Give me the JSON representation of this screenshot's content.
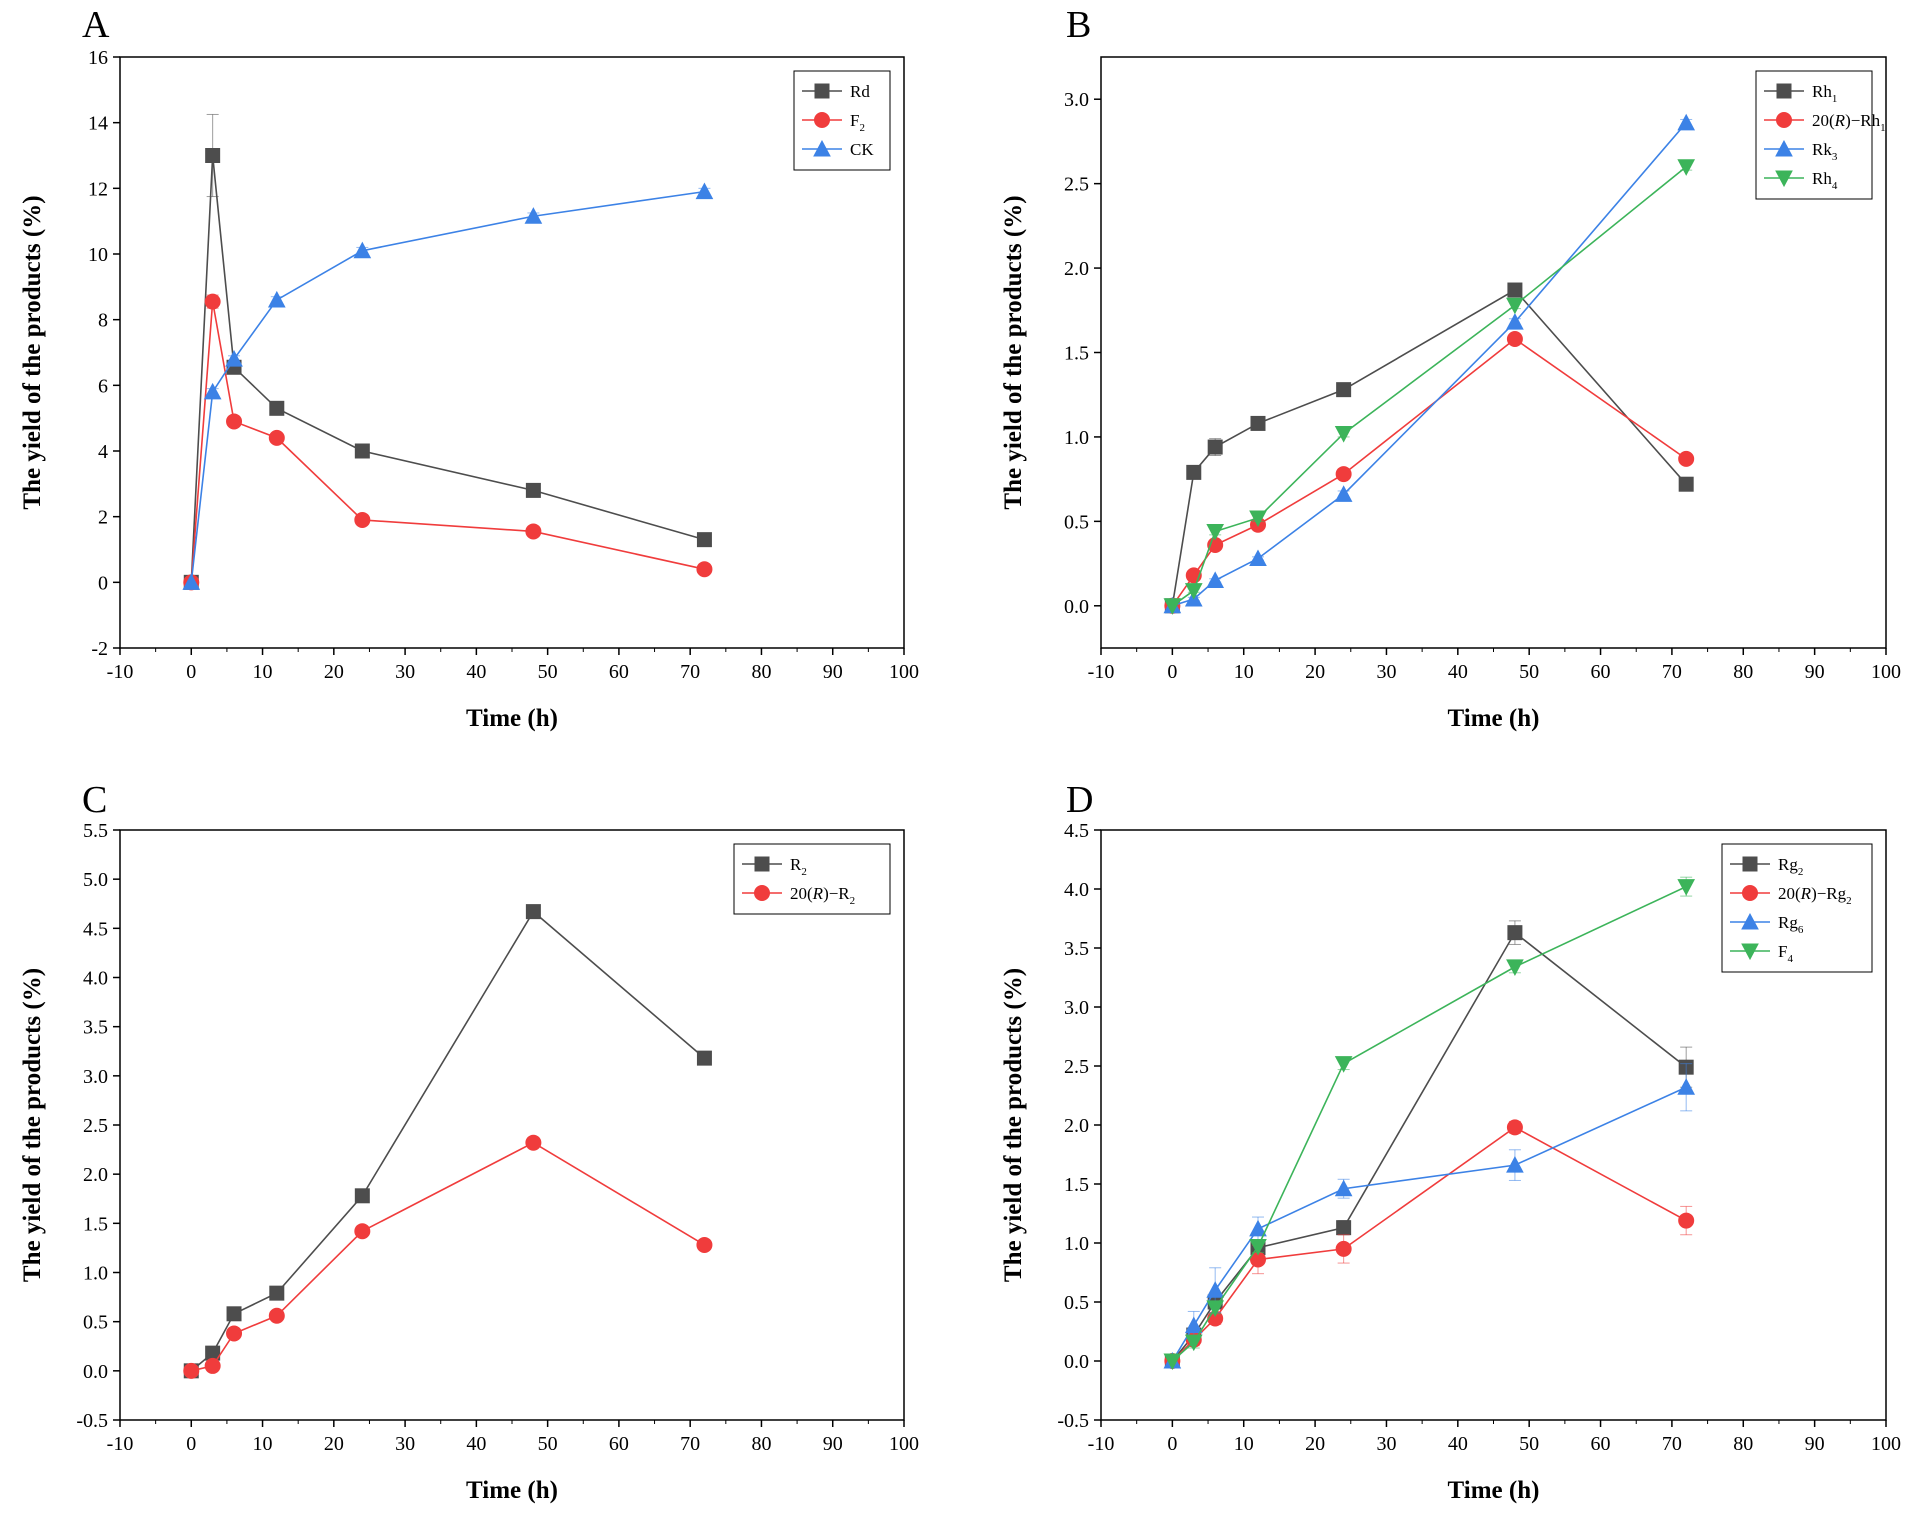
{
  "figure": {
    "panels": [
      "A",
      "B",
      "C",
      "D"
    ]
  },
  "chart_data": [
    {
      "panel": "A",
      "type": "line",
      "xlabel": "Time (h)",
      "ylabel": "The yield of the products (%)",
      "xlim": [
        -10,
        100
      ],
      "xticks": [
        -10,
        0,
        10,
        20,
        30,
        40,
        50,
        60,
        70,
        80,
        90,
        100
      ],
      "ylim": [
        -2,
        16
      ],
      "yticks": [
        -2,
        0,
        2,
        4,
        6,
        8,
        10,
        12,
        14,
        16
      ],
      "ytick_labels": [
        "-2",
        "0",
        "2",
        "4",
        "6",
        "8",
        "10",
        "12",
        "14",
        "16"
      ],
      "legend_position": "top-right",
      "x": [
        0,
        3,
        6,
        12,
        24,
        48,
        72
      ],
      "series": [
        {
          "name": "Rd",
          "sub": "",
          "color": "#4d4d4d",
          "marker": "square",
          "values": [
            0,
            13.0,
            6.55,
            5.3,
            4.0,
            2.8,
            1.3
          ],
          "errors": [
            0,
            1.25,
            0.12,
            0.15,
            0.1,
            0.05,
            0.1
          ]
        },
        {
          "name": "F",
          "sub": "2",
          "color": "#f03c3c",
          "marker": "circle",
          "values": [
            0,
            8.55,
            4.9,
            4.4,
            1.9,
            1.55,
            0.4
          ],
          "errors": [
            0,
            0.2,
            0.05,
            0.05,
            0.1,
            0.05,
            0.05
          ]
        },
        {
          "name": "CK",
          "sub": "",
          "color": "#3c82e6",
          "marker": "triangle-up",
          "values": [
            0,
            5.8,
            6.8,
            8.6,
            10.1,
            11.15,
            11.9
          ],
          "errors": [
            0,
            0.1,
            0.1,
            0.1,
            0.1,
            0.1,
            0.1
          ]
        }
      ]
    },
    {
      "panel": "B",
      "type": "line",
      "xlabel": "Time (h)",
      "ylabel": "The yield of the products (%)",
      "xlim": [
        -10,
        100
      ],
      "xticks": [
        -10,
        0,
        10,
        20,
        30,
        40,
        50,
        60,
        70,
        80,
        90,
        100
      ],
      "ylim": [
        -0.25,
        3.25
      ],
      "yticks": [
        0,
        0.5,
        1.0,
        1.5,
        2.0,
        2.5,
        3.0
      ],
      "ytick_labels": [
        "0.0",
        "0.5",
        "1.0",
        "1.5",
        "2.0",
        "2.5",
        "3.0"
      ],
      "legend_position": "top-right",
      "x": [
        0,
        3,
        6,
        12,
        24,
        48,
        72
      ],
      "series": [
        {
          "name": "Rh",
          "sub": "1",
          "color": "#4d4d4d",
          "marker": "square",
          "values": [
            0,
            0.79,
            0.94,
            1.08,
            1.28,
            1.87,
            0.72
          ],
          "errors": [
            0,
            0.02,
            0.05,
            0.02,
            0.02,
            0.02,
            0.02
          ]
        },
        {
          "name": "20(R)−Rh",
          "sub": "1",
          "color": "#f03c3c",
          "marker": "circle",
          "values": [
            0,
            0.18,
            0.36,
            0.48,
            0.78,
            1.58,
            0.87
          ],
          "errors": [
            0,
            0.02,
            0.02,
            0.02,
            0.02,
            0.02,
            0.02
          ]
        },
        {
          "name": "Rk",
          "sub": "3",
          "color": "#3c82e6",
          "marker": "triangle-up",
          "values": [
            0,
            0.04,
            0.15,
            0.28,
            0.66,
            1.68,
            2.86
          ],
          "errors": [
            0,
            0.01,
            0.01,
            0.01,
            0.02,
            0.02,
            0.02
          ]
        },
        {
          "name": "Rh",
          "sub": "4",
          "color": "#3cb45a",
          "marker": "triangle-down",
          "values": [
            0,
            0.09,
            0.44,
            0.52,
            1.02,
            1.78,
            2.6
          ],
          "errors": [
            0,
            0.01,
            0.02,
            0.02,
            0.02,
            0.02,
            0.02
          ]
        }
      ]
    },
    {
      "panel": "C",
      "type": "line",
      "xlabel": "Time (h)",
      "ylabel": "The yield of the products (%)",
      "xlim": [
        -10,
        100
      ],
      "xticks": [
        -10,
        0,
        10,
        20,
        30,
        40,
        50,
        60,
        70,
        80,
        90,
        100
      ],
      "ylim": [
        -0.5,
        5.5
      ],
      "yticks": [
        -0.5,
        0,
        0.5,
        1.0,
        1.5,
        2.0,
        2.5,
        3.0,
        3.5,
        4.0,
        4.5,
        5.0,
        5.5
      ],
      "ytick_labels": [
        "-0.5",
        "0.0",
        "0.5",
        "1.0",
        "1.5",
        "2.0",
        "2.5",
        "3.0",
        "3.5",
        "4.0",
        "4.5",
        "5.0",
        "5.5"
      ],
      "legend_position": "top-right",
      "x": [
        0,
        3,
        6,
        12,
        24,
        48,
        72
      ],
      "series": [
        {
          "name": "R",
          "sub": "2",
          "color": "#4d4d4d",
          "marker": "square",
          "values": [
            0,
            0.18,
            0.58,
            0.79,
            1.78,
            4.67,
            3.18
          ],
          "errors": [
            0,
            0.02,
            0.02,
            0.02,
            0.02,
            0.02,
            0.02
          ]
        },
        {
          "name": "20(R)−R",
          "sub": "2",
          "color": "#f03c3c",
          "marker": "circle",
          "values": [
            0,
            0.05,
            0.38,
            0.56,
            1.42,
            2.32,
            1.28
          ],
          "errors": [
            0,
            0.02,
            0.02,
            0.02,
            0.02,
            0.02,
            0.02
          ]
        }
      ]
    },
    {
      "panel": "D",
      "type": "line",
      "xlabel": "Time (h)",
      "ylabel": "The yield of the products (%)",
      "xlim": [
        -10,
        100
      ],
      "xticks": [
        -10,
        0,
        10,
        20,
        30,
        40,
        50,
        60,
        70,
        80,
        90,
        100
      ],
      "ylim": [
        -0.5,
        4.5
      ],
      "yticks": [
        -0.5,
        0,
        0.5,
        1.0,
        1.5,
        2.0,
        2.5,
        3.0,
        3.5,
        4.0,
        4.5
      ],
      "ytick_labels": [
        "-0.5",
        "0.0",
        "0.5",
        "1.0",
        "1.5",
        "2.0",
        "2.5",
        "3.0",
        "3.5",
        "4.0",
        "4.5"
      ],
      "legend_position": "top-right",
      "x": [
        0,
        3,
        6,
        12,
        24,
        48,
        72
      ],
      "series": [
        {
          "name": "Rg",
          "sub": "2",
          "color": "#4d4d4d",
          "marker": "square",
          "values": [
            0,
            0.22,
            0.5,
            0.96,
            1.13,
            3.63,
            2.49
          ],
          "errors": [
            0,
            0.05,
            0.05,
            0.05,
            0.06,
            0.1,
            0.17
          ]
        },
        {
          "name": "20(R)−Rg",
          "sub": "2",
          "color": "#f03c3c",
          "marker": "circle",
          "values": [
            0,
            0.18,
            0.36,
            0.86,
            0.95,
            1.98,
            1.19
          ],
          "errors": [
            0,
            0.05,
            0.05,
            0.12,
            0.12,
            0.05,
            0.12
          ]
        },
        {
          "name": "Rg",
          "sub": "6",
          "color": "#3c82e6",
          "marker": "triangle-up",
          "values": [
            0,
            0.3,
            0.6,
            1.12,
            1.46,
            1.66,
            2.32
          ],
          "errors": [
            0,
            0.12,
            0.19,
            0.1,
            0.08,
            0.13,
            0.2
          ]
        },
        {
          "name": "F",
          "sub": "4",
          "color": "#3cb45a",
          "marker": "triangle-down",
          "values": [
            0,
            0.16,
            0.45,
            0.97,
            2.52,
            3.34,
            4.02
          ],
          "errors": [
            0,
            0.05,
            0.05,
            0.05,
            0.05,
            0.05,
            0.08
          ]
        }
      ]
    }
  ]
}
